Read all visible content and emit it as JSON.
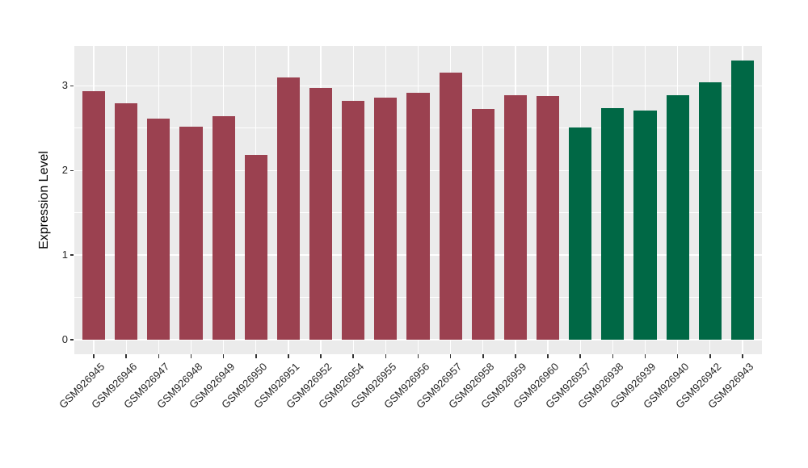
{
  "figure": {
    "background": "#ffffff",
    "panel_background": "#EBEBEB",
    "gridline_color": "#ffffff",
    "tick_text_color": "#262626",
    "axis_title_color": "#000000"
  },
  "chart_data": {
    "type": "bar",
    "title": "",
    "xlabel": "",
    "ylabel": "Expression Level",
    "ylim": [
      -0.17,
      3.47
    ],
    "yticks": [
      0,
      1,
      2,
      3
    ],
    "yticks_minor": [
      0.5,
      1.5,
      2.5
    ],
    "grid": "white major and minor horizontal lines plus vertical line at each category center, on gray panel",
    "legend_position": "none",
    "x_tick_rotation_deg": 45,
    "categories": [
      "GSM926945",
      "GSM926946",
      "GSM926947",
      "GSM926948",
      "GSM926949",
      "GSM926950",
      "GSM926951",
      "GSM926952",
      "GSM926954",
      "GSM926955",
      "GSM926956",
      "GSM926957",
      "GSM926958",
      "GSM926959",
      "GSM926960",
      "GSM926937",
      "GSM926938",
      "GSM926939",
      "GSM926940",
      "GSM926942",
      "GSM926943"
    ],
    "values": [
      2.94,
      2.79,
      2.61,
      2.52,
      2.64,
      2.18,
      3.1,
      2.97,
      2.82,
      2.86,
      2.92,
      3.16,
      2.73,
      2.89,
      2.88,
      2.51,
      2.74,
      2.71,
      2.89,
      3.04,
      3.3
    ],
    "groups": [
      {
        "name": "maroon-group",
        "color": "#9B4150",
        "start": 0,
        "count": 15
      },
      {
        "name": "green-group",
        "color": "#006845",
        "start": 15,
        "count": 6
      }
    ]
  }
}
